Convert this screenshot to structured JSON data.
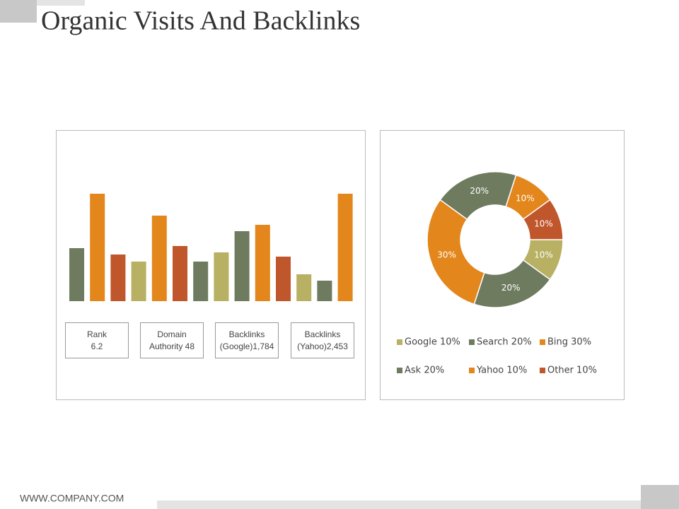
{
  "title": "Organic Visits And Backlinks",
  "footer": "WWW.COMPANY.COM",
  "info_boxes": [
    [
      "Rank",
      "6.2"
    ],
    [
      "Domain",
      "Authority 48"
    ],
    [
      "Backlinks",
      "(Google)1,784"
    ],
    [
      "Backlinks",
      "(Yahoo)2,453"
    ]
  ],
  "chart_data": [
    {
      "type": "bar",
      "values": [
        75,
        152,
        66,
        56,
        121,
        78,
        56,
        69,
        99,
        108,
        63,
        38,
        29,
        152
      ],
      "colors": [
        "#6e7b5f",
        "#e3861b",
        "#c0562b",
        "#b8b062",
        "#e3861b",
        "#c0562b",
        "#6e7b5f",
        "#b8b062",
        "#6e7b5f",
        "#e3861b",
        "#c0562b",
        "#b8b062",
        "#6e7b5f",
        "#e3861b"
      ],
      "ylim": [
        0,
        160
      ]
    },
    {
      "type": "donut",
      "categories": [
        "Google 10%",
        "Search 20%",
        "Bing 30%",
        "Ask 20%",
        "Yahoo 10%",
        "Other 10%"
      ],
      "values": [
        10,
        20,
        30,
        20,
        10,
        10
      ],
      "value_labels": [
        "10%",
        "20%",
        "30%",
        "20%",
        "10%",
        "10%"
      ],
      "colors": [
        "#b8b062",
        "#6e7b5f",
        "#e3861b",
        "#6e7b5f",
        "#e3861b",
        "#c0562b"
      ]
    }
  ]
}
